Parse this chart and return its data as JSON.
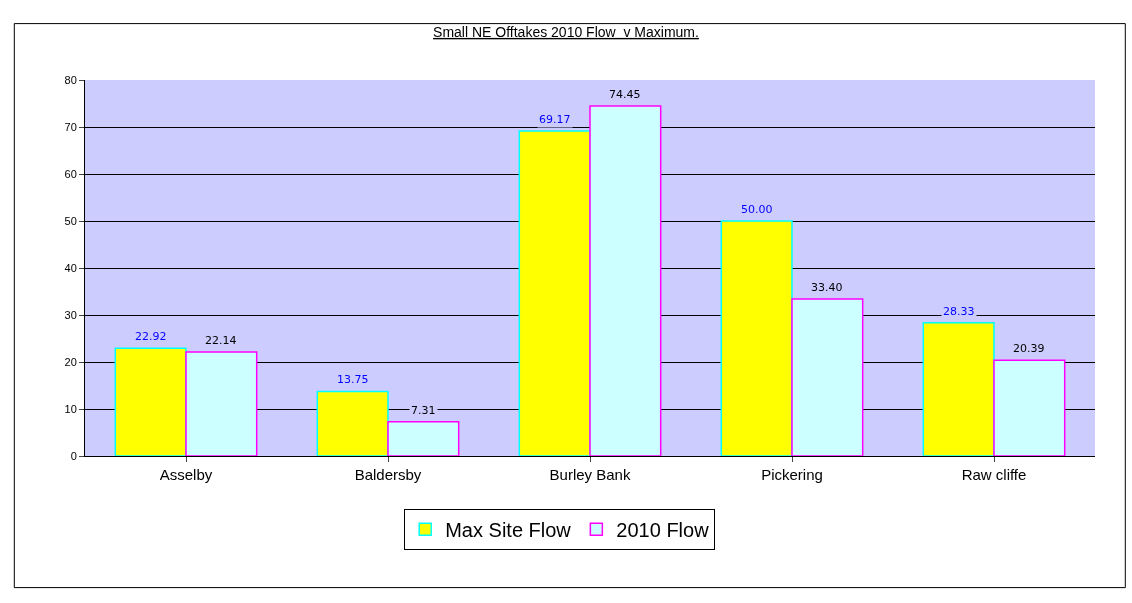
{
  "chart_data": {
    "type": "bar",
    "title": "Small NE Offtakes 2010 Flow  v Maximum.",
    "categories": [
      "Asselby",
      "Baldersby",
      "Burley Bank",
      "Pickering",
      "Raw cliffe"
    ],
    "series": [
      {
        "name": "Max Site Flow",
        "color": "#ffff00",
        "values": [
          22.92,
          13.75,
          69.17,
          50.0,
          28.33
        ],
        "value_labels": [
          "22.92",
          "13.75",
          "69.17",
          "50.00",
          "28.33"
        ]
      },
      {
        "name": "2010 Flow",
        "color": "#ccffff",
        "values": [
          22.14,
          7.31,
          74.45,
          33.4,
          20.39
        ],
        "value_labels": [
          "22.14",
          "7.31",
          "74.45",
          "33.40",
          "20.39"
        ]
      }
    ],
    "ylim": [
      0,
      80
    ],
    "yticks": [
      0,
      10,
      20,
      30,
      40,
      50,
      60,
      70,
      80
    ],
    "grid": "y",
    "legend": "bottom"
  }
}
